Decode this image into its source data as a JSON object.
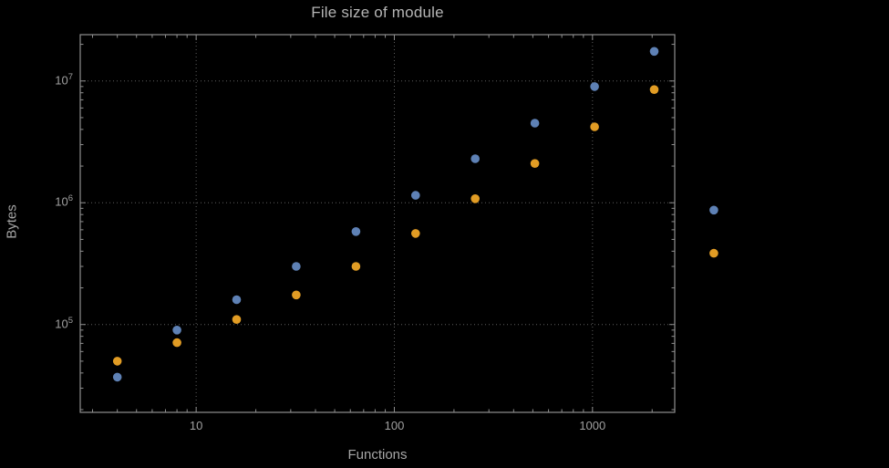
{
  "figure": {
    "background": "#000000",
    "frame_color": "#8f8f8f",
    "grid_color": "#5e5e5e",
    "tick_text_color": "#a0a0a0",
    "axis_label_color": "#a6a6a6",
    "title_color": "#b5b5b5"
  },
  "chart_data": {
    "type": "scatter",
    "title": "File size of module",
    "xlabel": "Functions",
    "ylabel": "Bytes",
    "x_scale": "log",
    "y_scale": "log",
    "grid": "dotted",
    "legend": "none",
    "xlim": [
      2.6,
      2600
    ],
    "ylim": [
      19000,
      24000000
    ],
    "x_ticks": [
      {
        "value": 10,
        "label": "10"
      },
      {
        "value": 100,
        "label": "100"
      },
      {
        "value": 1000,
        "label": "1000"
      }
    ],
    "y_ticks": [
      {
        "value": 100000,
        "base": "10",
        "exponent": "5"
      },
      {
        "value": 1000000,
        "base": "10",
        "exponent": "6"
      },
      {
        "value": 10000000,
        "base": "10",
        "exponent": "7"
      }
    ],
    "x": [
      4,
      8,
      16,
      32,
      64,
      128,
      256,
      512,
      1024,
      2048,
      4096
    ],
    "series": [
      {
        "name": "series-blue",
        "color": "#5E81B5",
        "values": [
          37000,
          90000,
          160000,
          300000,
          580000,
          1150000,
          2300000,
          4500000,
          9000000,
          17500000,
          870000
        ]
      },
      {
        "name": "series-orange",
        "color": "#E19C24",
        "values": [
          50000,
          71000,
          110000,
          175000,
          300000,
          560000,
          1080000,
          2100000,
          4200000,
          8500000,
          385000
        ]
      }
    ]
  }
}
